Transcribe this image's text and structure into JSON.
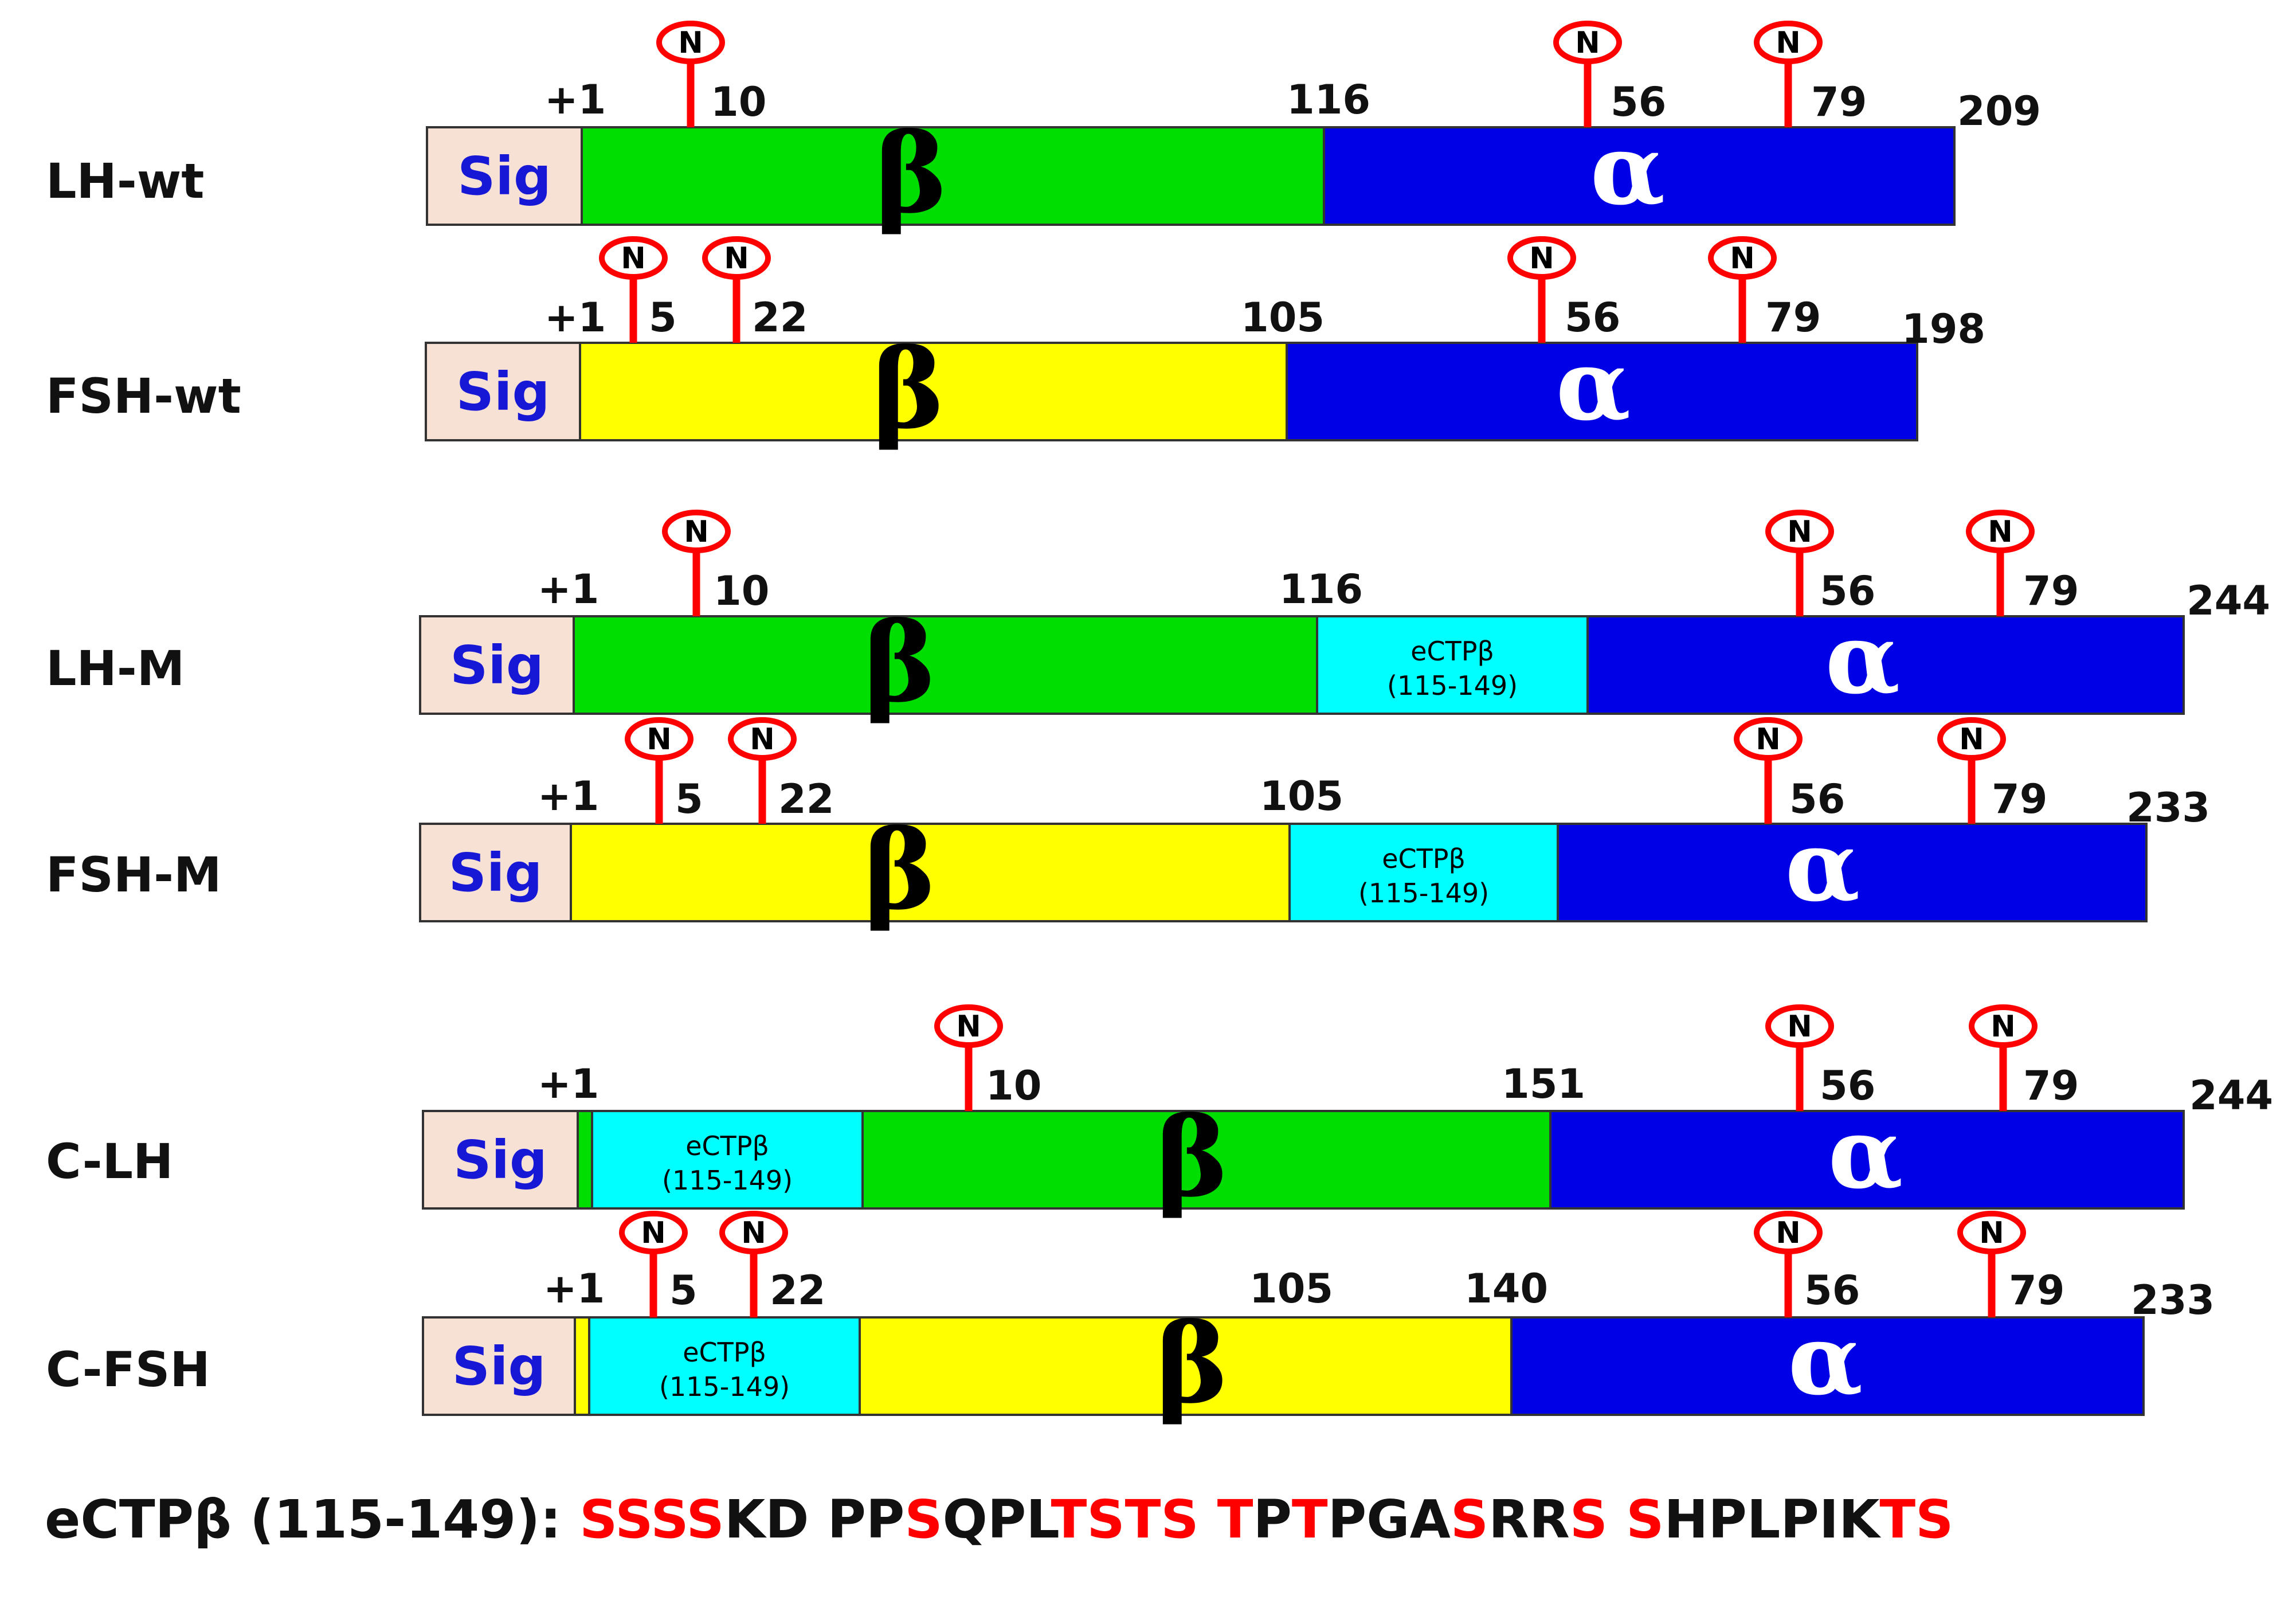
{
  "colors": {
    "sig": "#f7e1d4",
    "sig_text": "#1717d6",
    "beta_lh": "#00dd00",
    "beta_fsh": "#ffff00",
    "alpha": "#0000e6",
    "ectp": "#00ffff",
    "glycan": "#ff0000",
    "highlight": "#ff0000"
  },
  "diagram": {
    "sig_label": "Sig",
    "beta_label": "β",
    "alpha_label": "α",
    "ectp_label_line1": "eCTPβ",
    "ectp_label_line2": "(115-149)",
    "glycan_label": "N",
    "constructs": [
      {
        "name": "LH-wt",
        "positions": [
          "+1",
          "116",
          "209"
        ],
        "glycosylation_sites": [
          "10",
          "56",
          "79"
        ],
        "segments": [
          "Sig",
          "β",
          "α"
        ]
      },
      {
        "name": "FSH-wt",
        "positions": [
          "+1",
          "105",
          "198"
        ],
        "glycosylation_sites": [
          "5",
          "22",
          "56",
          "79"
        ],
        "segments": [
          "Sig",
          "β",
          "α"
        ]
      },
      {
        "name": "LH-M",
        "positions": [
          "+1",
          "116",
          "244"
        ],
        "glycosylation_sites": [
          "10",
          "56",
          "79"
        ],
        "segments": [
          "Sig",
          "β",
          "eCTPβ (115-149)",
          "α"
        ]
      },
      {
        "name": "FSH-M",
        "positions": [
          "+1",
          "105",
          "233"
        ],
        "glycosylation_sites": [
          "5",
          "22",
          "56",
          "79"
        ],
        "segments": [
          "Sig",
          "β",
          "eCTPβ (115-149)",
          "α"
        ]
      },
      {
        "name": "C-LH",
        "positions": [
          "+1",
          "151",
          "244"
        ],
        "glycosylation_sites": [
          "10",
          "56",
          "79"
        ],
        "segments": [
          "Sig",
          "eCTPβ (115-149)",
          "β",
          "α"
        ]
      },
      {
        "name": "C-FSH",
        "positions": [
          "+1",
          "105",
          "140",
          "233"
        ],
        "glycosylation_sites": [
          "5",
          "22",
          "56",
          "79"
        ],
        "segments": [
          "Sig",
          "eCTPβ (115-149)",
          "β",
          "α"
        ]
      }
    ]
  },
  "sequence": {
    "label": "eCTPβ (115-149):",
    "segments": [
      {
        "text": " ",
        "red": false
      },
      {
        "text": "SSSS",
        "red": true
      },
      {
        "text": "KD PP",
        "red": false
      },
      {
        "text": "S",
        "red": true
      },
      {
        "text": "QPL",
        "red": false
      },
      {
        "text": "TSTS T",
        "red": true
      },
      {
        "text": "P",
        "red": false
      },
      {
        "text": "T",
        "red": true
      },
      {
        "text": "PGA",
        "red": false
      },
      {
        "text": "S",
        "red": true
      },
      {
        "text": "RR",
        "red": false
      },
      {
        "text": "S S",
        "red": true
      },
      {
        "text": "HPLPIK",
        "red": false
      },
      {
        "text": "TS",
        "red": true
      }
    ]
  }
}
